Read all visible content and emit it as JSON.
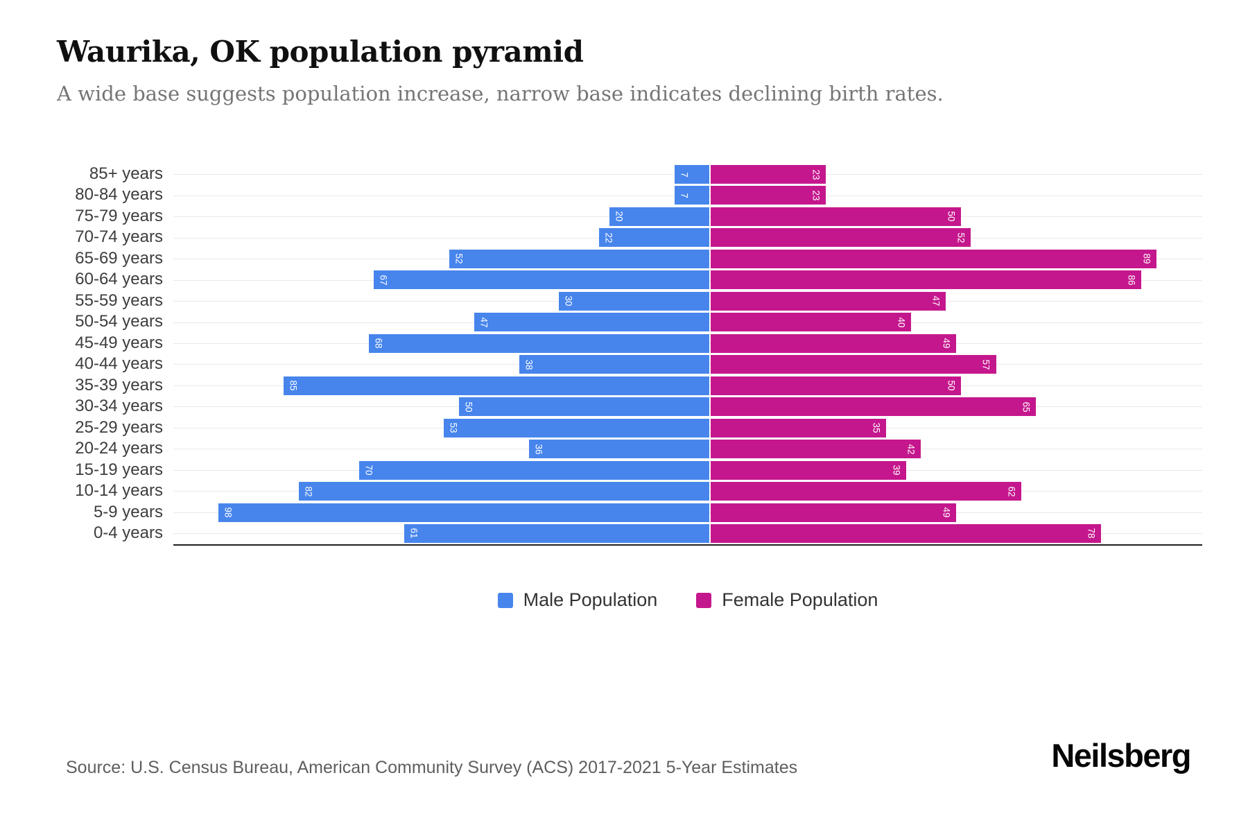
{
  "header": {
    "title": "Waurika, OK population pyramid",
    "subtitle": "A wide base suggests population increase, narrow base indicates declining birth rates."
  },
  "chart_data": {
    "type": "bar",
    "variant": "population-pyramid",
    "categories": [
      "85+ years",
      "80-84 years",
      "75-79 years",
      "70-74 years",
      "65-69 years",
      "60-64 years",
      "55-59 years",
      "50-54 years",
      "45-49 years",
      "40-44 years",
      "35-39 years",
      "30-34 years",
      "25-29 years",
      "20-24 years",
      "15-19 years",
      "10-14 years",
      "5-9 years",
      "0-4 years"
    ],
    "series": [
      {
        "name": "Male Population",
        "side": "left",
        "color": "#4785EC",
        "values": [
          7,
          7,
          20,
          22,
          52,
          67,
          30,
          47,
          68,
          38,
          85,
          50,
          53,
          36,
          70,
          82,
          98,
          61
        ]
      },
      {
        "name": "Female Population",
        "side": "right",
        "color": "#C5178D",
        "values": [
          23,
          23,
          50,
          52,
          89,
          86,
          47,
          40,
          49,
          57,
          50,
          65,
          35,
          42,
          39,
          62,
          49,
          78
        ]
      }
    ],
    "layout": {
      "grid": true,
      "gridline_color": "#e9e9e9",
      "legend_position": "bottom",
      "value_labels": "rotated 90deg, white, inside bar ends",
      "male_axis_max": 107,
      "female_axis_max": 98
    }
  },
  "footer": {
    "source": "Source: U.S. Census Bureau, American Community Survey (ACS) 2017-2021 5-Year Estimates",
    "brand": "Neilsberg"
  }
}
